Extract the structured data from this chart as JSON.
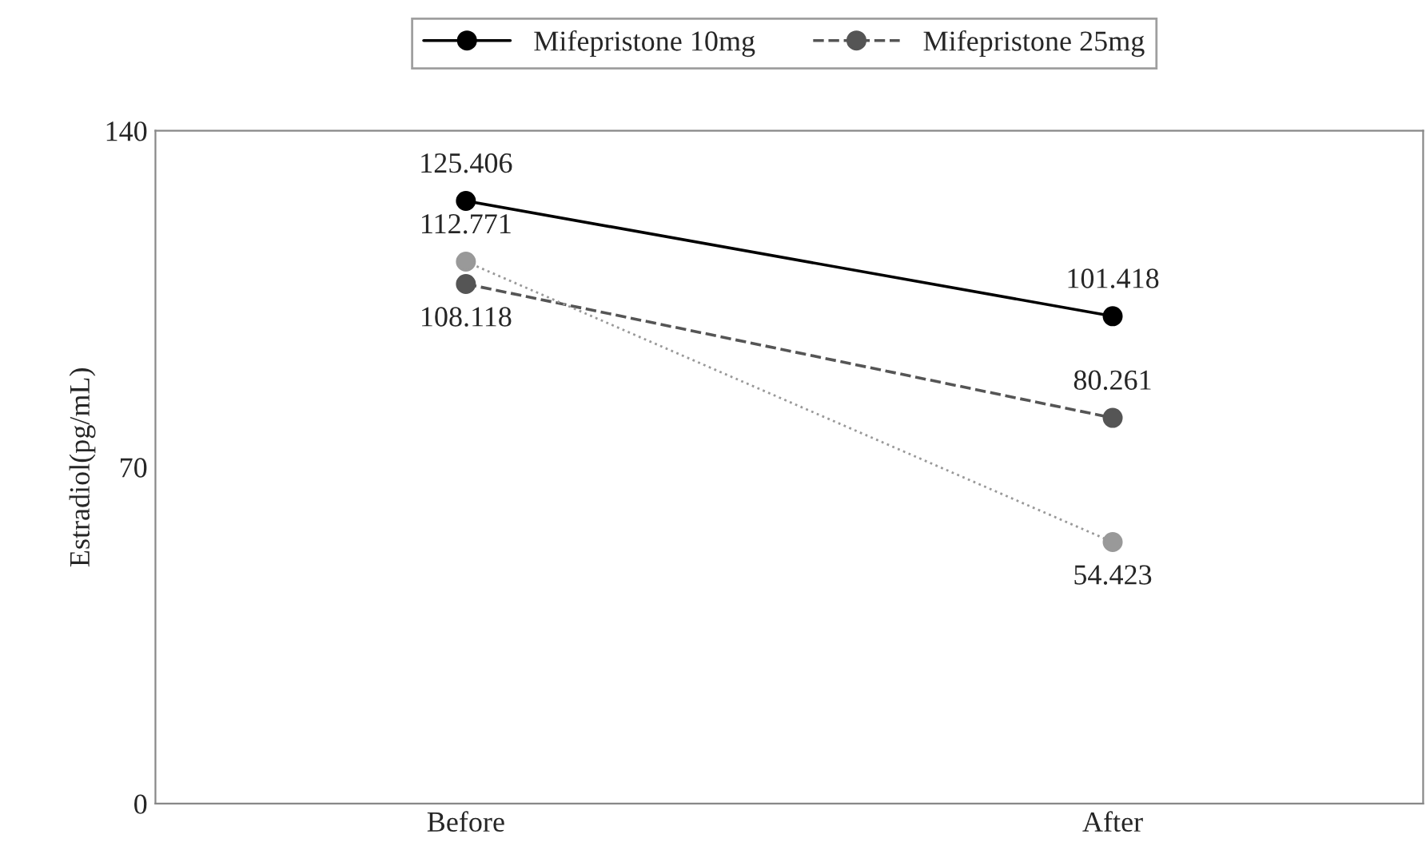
{
  "chart_data": {
    "type": "line",
    "ylabel": "Estradiol(pg/mL)",
    "categories": [
      "Before",
      "After"
    ],
    "series": [
      {
        "name": "Mifepristone 10mg",
        "color": "#000000",
        "values": [
          125.406,
          101.418
        ],
        "marker": "circle",
        "line_style": "solid"
      },
      {
        "name": "Mifepristone 25mg",
        "color": "#555555",
        "values": [
          108.118,
          80.261
        ],
        "marker": "circle",
        "line_style": "dashed"
      },
      {
        "color": "#999999",
        "values": [
          112.771,
          54.423
        ],
        "marker": "circle",
        "line_style": "dotted"
      }
    ],
    "value_labels": [
      [
        "125.406",
        "101.418"
      ],
      [
        "108.118",
        "80.261"
      ],
      [
        "112.771",
        "54.423"
      ]
    ],
    "ylim": [
      0,
      140
    ],
    "yticks": [
      0,
      70,
      140
    ],
    "grid": false,
    "legend": "top"
  }
}
